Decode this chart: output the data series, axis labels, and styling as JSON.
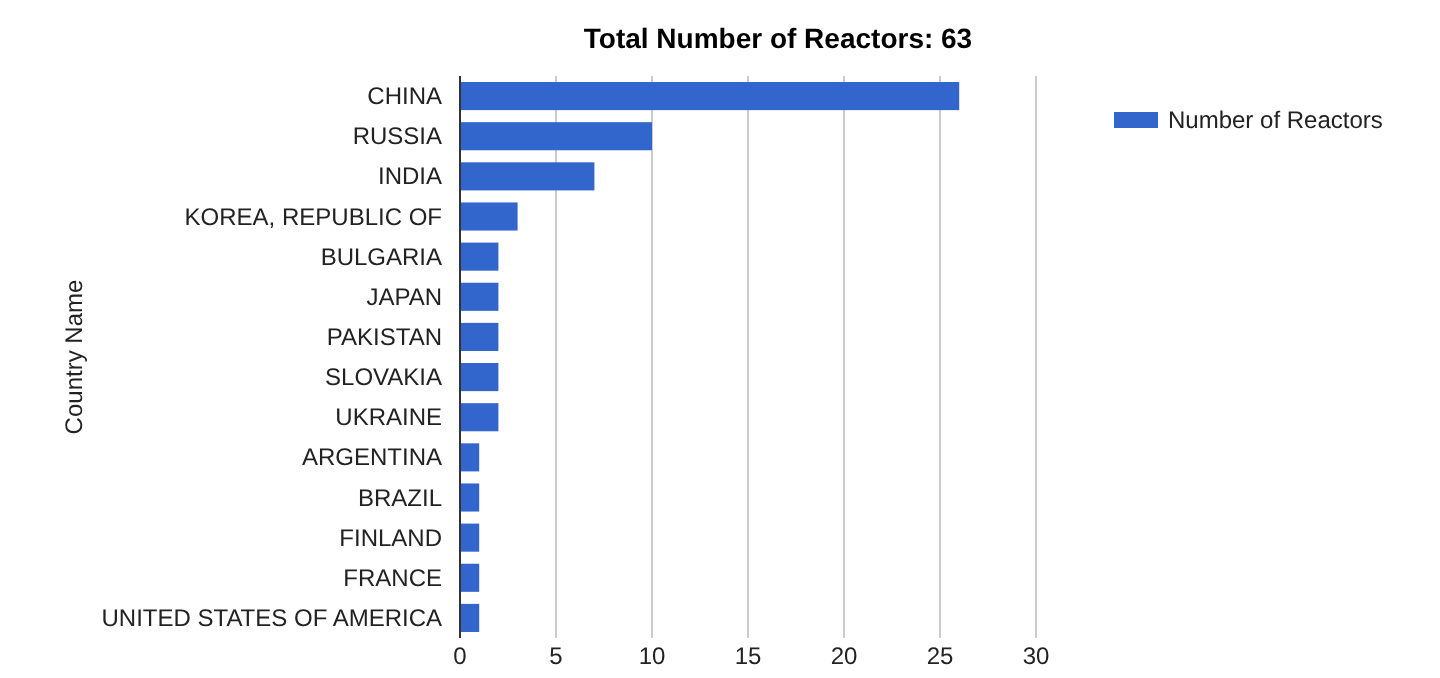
{
  "chart_data": {
    "type": "bar",
    "orientation": "horizontal",
    "title": "Total Number of Reactors: 63",
    "ylabel": "Country Name",
    "categories": [
      "CHINA",
      "RUSSIA",
      "INDIA",
      "KOREA, REPUBLIC OF",
      "BULGARIA",
      "JAPAN",
      "PAKISTAN",
      "SLOVAKIA",
      "UKRAINE",
      "ARGENTINA",
      "BRAZIL",
      "FINLAND",
      "FRANCE",
      "UNITED STATES OF AMERICA"
    ],
    "series": [
      {
        "name": "Number of Reactors",
        "color": "#3366cc",
        "values": [
          26,
          10,
          7,
          3,
          2,
          2,
          2,
          2,
          2,
          1,
          1,
          1,
          1,
          1
        ]
      }
    ],
    "xlim": [
      0,
      30
    ],
    "xticks": [
      0,
      5,
      10,
      15,
      20,
      25,
      30
    ],
    "grid": "x",
    "legend": "top right"
  }
}
